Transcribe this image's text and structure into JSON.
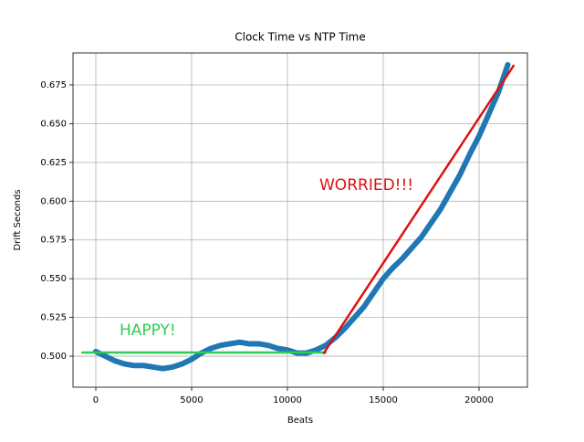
{
  "chart_data": {
    "type": "line",
    "title": "Clock Time vs NTP Time",
    "xlabel": "Beats",
    "ylabel": "Drift Seconds",
    "series": [
      {
        "color": "#1f77b4",
        "x": [
          0,
          500,
          1000,
          1500,
          2000,
          2500,
          3000,
          3500,
          4000,
          4500,
          5000,
          5500,
          6000,
          6500,
          7000,
          7500,
          8000,
          8500,
          9000,
          9500,
          10000,
          10500,
          11000,
          11500,
          12000,
          12500,
          13000,
          13500,
          14000,
          14500,
          15000,
          15500,
          16000,
          16500,
          17000,
          17500,
          18000,
          18500,
          19000,
          19500,
          20000,
          20500,
          21000,
          21500
        ],
        "values": [
          0.503,
          0.5,
          0.497,
          0.495,
          0.494,
          0.494,
          0.493,
          0.492,
          0.493,
          0.495,
          0.498,
          0.502,
          0.505,
          0.507,
          0.508,
          0.509,
          0.508,
          0.508,
          0.507,
          0.505,
          0.504,
          0.502,
          0.502,
          0.504,
          0.507,
          0.512,
          0.518,
          0.525,
          0.532,
          0.541,
          0.55,
          0.557,
          0.563,
          0.57,
          0.577,
          0.586,
          0.595,
          0.606,
          0.617,
          0.63,
          0.642,
          0.656,
          0.67,
          0.688
        ]
      },
      {
        "color": "#2ecc55",
        "x": [
          -700,
          12000
        ],
        "values": [
          0.5024,
          0.5024
        ]
      },
      {
        "color": "#dd1111",
        "x": [
          11900,
          21800
        ],
        "values": [
          0.502,
          0.6874
        ]
      }
    ],
    "annotations": [
      {
        "text": "HAPPY!",
        "color": "#2ecc55"
      },
      {
        "text": "WORRIED!!!",
        "color": "#dd1111"
      }
    ],
    "xlim": [
      -1190,
      22524
    ],
    "ylim": [
      0.48,
      0.6956
    ],
    "xticks": [
      0,
      5000,
      10000,
      15000,
      20000
    ],
    "yticks": [
      {
        "value": 0.5,
        "label": "0.500"
      },
      0.525,
      {
        "value": 0.55,
        "label": "0.550"
      },
      0.575,
      {
        "value": 0.6,
        "label": "0.600"
      },
      0.625,
      {
        "value": 0.65,
        "label": "0.650"
      },
      0.675
    ],
    "grid": true
  }
}
